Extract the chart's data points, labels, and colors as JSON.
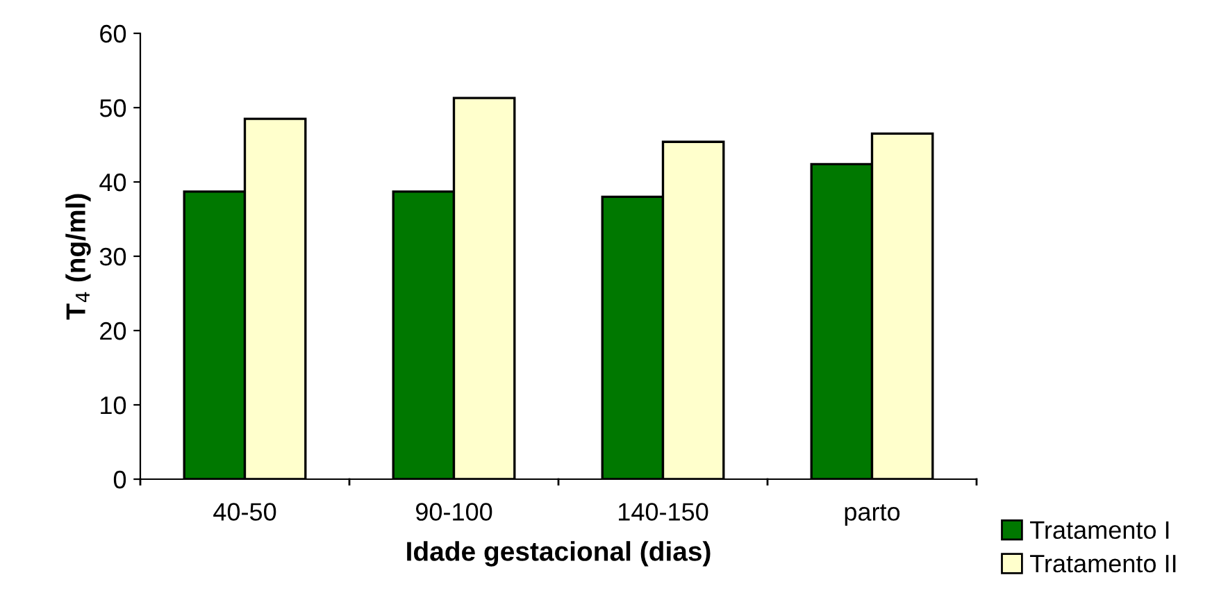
{
  "chart_data": {
    "type": "bar",
    "xlabel": "Idade gestacional (dias)",
    "ylabel": "T$_{4}$ (ng/ml)",
    "categories": [
      "40-50",
      "90-100",
      "140-150",
      "parto"
    ],
    "series": [
      {
        "name": "Tratamento I",
        "color": "#007800",
        "values": [
          38.7,
          38.7,
          38.0,
          42.4
        ]
      },
      {
        "name": "Tratamento II",
        "color": "#ffffcc",
        "values": [
          48.5,
          51.3,
          45.4,
          46.5
        ]
      }
    ],
    "ylim": [
      0,
      60
    ],
    "yticks": [
      0,
      10,
      20,
      30,
      40,
      50,
      60
    ],
    "grid": false,
    "legend": "bottom right"
  }
}
